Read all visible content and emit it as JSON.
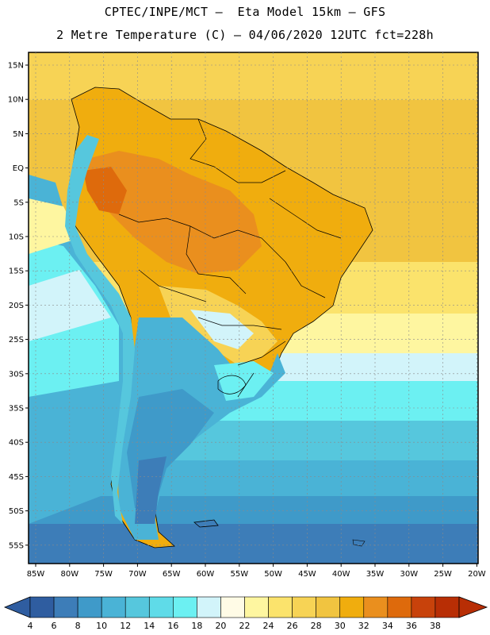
{
  "header": {
    "title_line1": "CPTEC/INPE/MCT —  Eta Model 15km — GFS",
    "title_line2": "2 Metre Temperature (C) — 04/06/2020 12UTC fct=228h"
  },
  "lat_labels": [
    "15N",
    "10N",
    "5N",
    "EQ",
    "5S",
    "10S",
    "15S",
    "20S",
    "25S",
    "30S",
    "35S",
    "40S",
    "45S",
    "50S",
    "55S"
  ],
  "lon_labels": [
    "85W",
    "80W",
    "75W",
    "70W",
    "65W",
    "60W",
    "55W",
    "50W",
    "45W",
    "40W",
    "35W",
    "30W",
    "25W",
    "20W"
  ],
  "colorbar": {
    "ticks": [
      "4",
      "6",
      "8",
      "10",
      "12",
      "14",
      "16",
      "18",
      "20",
      "22",
      "24",
      "26",
      "28",
      "30",
      "32",
      "34",
      "36",
      "38"
    ],
    "colors": [
      "#2f5da0",
      "#3d7db8",
      "#3f9ac9",
      "#4ab3d6",
      "#56c7dd",
      "#5fdbe8",
      "#6cf0f2",
      "#d2f4fa",
      "#fffbe6",
      "#fef6a0",
      "#fbe36c",
      "#f7d355",
      "#f1c440",
      "#f0ad0e",
      "#ea8f1e",
      "#de6a0c",
      "#c8420b",
      "#b82e05"
    ]
  }
}
